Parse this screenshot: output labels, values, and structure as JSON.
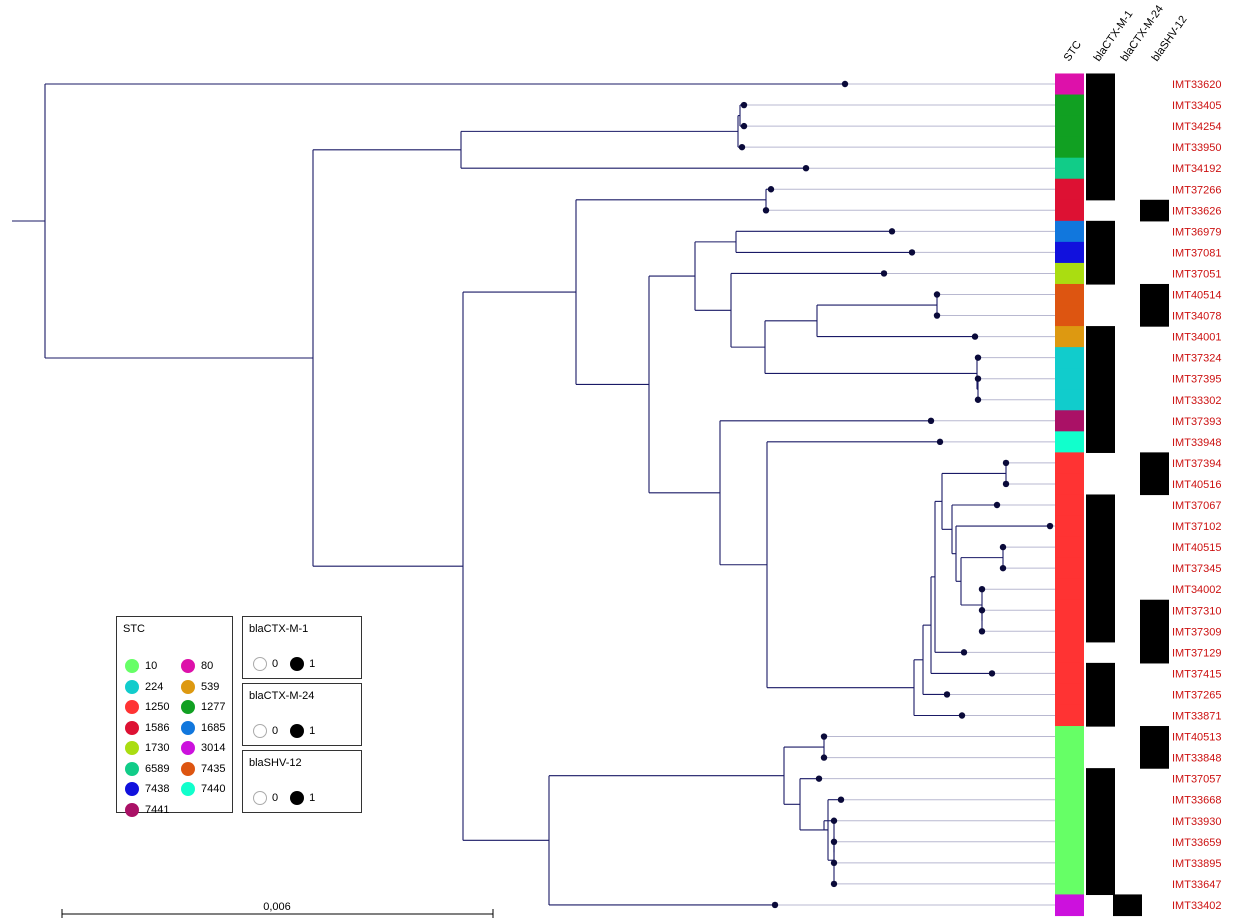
{
  "columns": [
    "STC",
    "blaCTX-M-1",
    "blaCTX-M-24",
    "blaSHV-12"
  ],
  "stc_colors": {
    "10": "#66ff66",
    "80": "#dd11aa",
    "224": "#11cccc",
    "539": "#dd9911",
    "1250": "#ff3333",
    "1277": "#11a022",
    "1586": "#dd1133",
    "1685": "#1177dd",
    "1730": "#aadd11",
    "3014": "#cc11dd",
    "6589": "#11cc88",
    "7435": "#dd5511",
    "7438": "#1111dd",
    "7440": "#11ffcc",
    "7441": "#aa1166"
  },
  "taxa": [
    {
      "id": "IMT33620",
      "stc": "80",
      "ctx_m_1": 1,
      "ctx_m_24": 0,
      "shv_12": 0
    },
    {
      "id": "IMT33405",
      "stc": "1277",
      "ctx_m_1": 1,
      "ctx_m_24": 0,
      "shv_12": 0
    },
    {
      "id": "IMT34254",
      "stc": "1277",
      "ctx_m_1": 1,
      "ctx_m_24": 0,
      "shv_12": 0
    },
    {
      "id": "IMT33950",
      "stc": "1277",
      "ctx_m_1": 1,
      "ctx_m_24": 0,
      "shv_12": 0
    },
    {
      "id": "IMT34192",
      "stc": "6589",
      "ctx_m_1": 1,
      "ctx_m_24": 0,
      "shv_12": 0
    },
    {
      "id": "IMT37266",
      "stc": "1586",
      "ctx_m_1": 1,
      "ctx_m_24": 0,
      "shv_12": 0
    },
    {
      "id": "IMT33626",
      "stc": "1586",
      "ctx_m_1": 0,
      "ctx_m_24": 0,
      "shv_12": 1
    },
    {
      "id": "IMT36979",
      "stc": "1685",
      "ctx_m_1": 1,
      "ctx_m_24": 0,
      "shv_12": 0
    },
    {
      "id": "IMT37081",
      "stc": "7438",
      "ctx_m_1": 1,
      "ctx_m_24": 0,
      "shv_12": 0
    },
    {
      "id": "IMT37051",
      "stc": "1730",
      "ctx_m_1": 1,
      "ctx_m_24": 0,
      "shv_12": 0
    },
    {
      "id": "IMT40514",
      "stc": "7435",
      "ctx_m_1": 0,
      "ctx_m_24": 0,
      "shv_12": 1
    },
    {
      "id": "IMT34078",
      "stc": "7435",
      "ctx_m_1": 0,
      "ctx_m_24": 0,
      "shv_12": 1
    },
    {
      "id": "IMT34001",
      "stc": "539",
      "ctx_m_1": 1,
      "ctx_m_24": 0,
      "shv_12": 0
    },
    {
      "id": "IMT37324",
      "stc": "224",
      "ctx_m_1": 1,
      "ctx_m_24": 0,
      "shv_12": 0
    },
    {
      "id": "IMT37395",
      "stc": "224",
      "ctx_m_1": 1,
      "ctx_m_24": 0,
      "shv_12": 0
    },
    {
      "id": "IMT33302",
      "stc": "224",
      "ctx_m_1": 1,
      "ctx_m_24": 0,
      "shv_12": 0
    },
    {
      "id": "IMT37393",
      "stc": "7441",
      "ctx_m_1": 1,
      "ctx_m_24": 0,
      "shv_12": 0
    },
    {
      "id": "IMT33948",
      "stc": "7440",
      "ctx_m_1": 1,
      "ctx_m_24": 0,
      "shv_12": 0
    },
    {
      "id": "IMT37394",
      "stc": "1250",
      "ctx_m_1": 0,
      "ctx_m_24": 0,
      "shv_12": 1
    },
    {
      "id": "IMT40516",
      "stc": "1250",
      "ctx_m_1": 0,
      "ctx_m_24": 0,
      "shv_12": 1
    },
    {
      "id": "IMT37067",
      "stc": "1250",
      "ctx_m_1": 1,
      "ctx_m_24": 0,
      "shv_12": 0
    },
    {
      "id": "IMT37102",
      "stc": "1250",
      "ctx_m_1": 1,
      "ctx_m_24": 0,
      "shv_12": 0
    },
    {
      "id": "IMT40515",
      "stc": "1250",
      "ctx_m_1": 1,
      "ctx_m_24": 0,
      "shv_12": 0
    },
    {
      "id": "IMT37345",
      "stc": "1250",
      "ctx_m_1": 1,
      "ctx_m_24": 0,
      "shv_12": 0
    },
    {
      "id": "IMT34002",
      "stc": "1250",
      "ctx_m_1": 1,
      "ctx_m_24": 0,
      "shv_12": 0
    },
    {
      "id": "IMT37310",
      "stc": "1250",
      "ctx_m_1": 1,
      "ctx_m_24": 0,
      "shv_12": 1
    },
    {
      "id": "IMT37309",
      "stc": "1250",
      "ctx_m_1": 1,
      "ctx_m_24": 0,
      "shv_12": 1
    },
    {
      "id": "IMT37129",
      "stc": "1250",
      "ctx_m_1": 0,
      "ctx_m_24": 0,
      "shv_12": 1
    },
    {
      "id": "IMT37415",
      "stc": "1250",
      "ctx_m_1": 1,
      "ctx_m_24": 0,
      "shv_12": 0
    },
    {
      "id": "IMT37265",
      "stc": "1250",
      "ctx_m_1": 1,
      "ctx_m_24": 0,
      "shv_12": 0
    },
    {
      "id": "IMT33871",
      "stc": "1250",
      "ctx_m_1": 1,
      "ctx_m_24": 0,
      "shv_12": 0
    },
    {
      "id": "IMT40513",
      "stc": "10",
      "ctx_m_1": 0,
      "ctx_m_24": 0,
      "shv_12": 1
    },
    {
      "id": "IMT33848",
      "stc": "10",
      "ctx_m_1": 0,
      "ctx_m_24": 0,
      "shv_12": 1
    },
    {
      "id": "IMT37057",
      "stc": "10",
      "ctx_m_1": 1,
      "ctx_m_24": 0,
      "shv_12": 0
    },
    {
      "id": "IMT33668",
      "stc": "10",
      "ctx_m_1": 1,
      "ctx_m_24": 0,
      "shv_12": 0
    },
    {
      "id": "IMT33930",
      "stc": "10",
      "ctx_m_1": 1,
      "ctx_m_24": 0,
      "shv_12": 0
    },
    {
      "id": "IMT33659",
      "stc": "10",
      "ctx_m_1": 1,
      "ctx_m_24": 0,
      "shv_12": 0
    },
    {
      "id": "IMT33895",
      "stc": "10",
      "ctx_m_1": 1,
      "ctx_m_24": 0,
      "shv_12": 0
    },
    {
      "id": "IMT33647",
      "stc": "10",
      "ctx_m_1": 1,
      "ctx_m_24": 0,
      "shv_12": 0
    },
    {
      "id": "IMT33402",
      "stc": "3014",
      "ctx_m_1": 0,
      "ctx_m_24": 1,
      "shv_12": 0
    }
  ],
  "legend": {
    "stc_title": "STC",
    "stc_entries": [
      "10",
      "80",
      "224",
      "539",
      "1250",
      "1277",
      "1586",
      "1685",
      "1730",
      "3014",
      "6589",
      "7435",
      "7438",
      "7440",
      "7441"
    ],
    "binary_legends": [
      {
        "title": "blaCTX-M-1",
        "absent_label": "0",
        "present_label": "1"
      },
      {
        "title": "blaCTX-M-24",
        "absent_label": "0",
        "present_label": "1"
      },
      {
        "title": "blaSHV-12",
        "absent_label": "0",
        "present_label": "1"
      }
    ]
  },
  "scale_bar": {
    "label": "0,006"
  },
  "colors": {
    "branch": "#1a1a66",
    "tip_line": "#b8b8d0",
    "node_dot": "#0a0a3a",
    "tip_label": "#cc1111",
    "presence": "#000000"
  }
}
